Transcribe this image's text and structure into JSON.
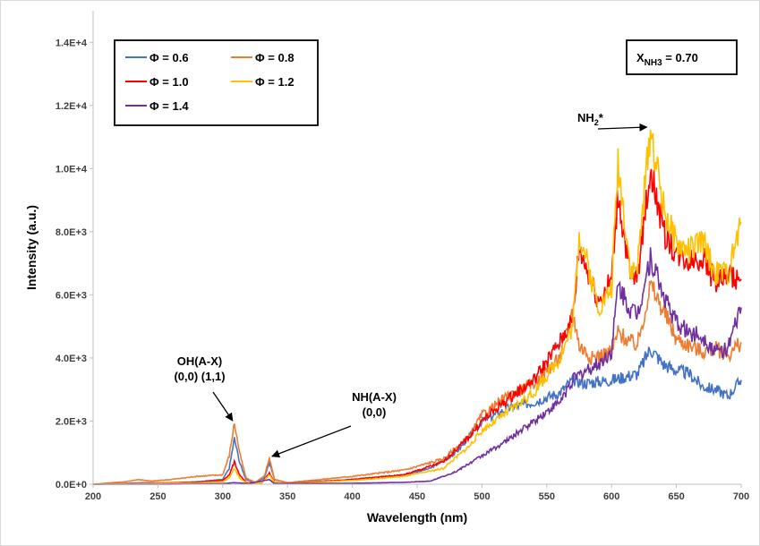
{
  "chart_data": {
    "type": "line",
    "title": "",
    "xlabel": "Wavelength (nm)",
    "ylabel": "Intensity (a.u.)",
    "xlim": [
      200,
      700
    ],
    "ylim": [
      0,
      15000
    ],
    "x_ticks": [
      200,
      250,
      300,
      350,
      400,
      450,
      500,
      550,
      600,
      650,
      700
    ],
    "x_tick_labels": [
      "200",
      "250",
      "300",
      "350",
      "400",
      "450",
      "500",
      "550",
      "600",
      "650",
      "700"
    ],
    "y_ticks": [
      0,
      2000,
      4000,
      6000,
      8000,
      10000,
      12000,
      14000
    ],
    "y_tick_labels": [
      "0.0E+0",
      "2.0E+3",
      "4.0E+3",
      "6.0E+3",
      "8.0E+3",
      "1.0E+4",
      "1.2E+4",
      "1.4E+4"
    ],
    "grid": false,
    "legend_position": "top-left",
    "composition_box": {
      "prefix": "X",
      "subscript": "NH3",
      "suffix": " = 0.70"
    },
    "annotations": [
      {
        "lines": [
          "OH(A-X)",
          "(0,0) (1,1)"
        ],
        "target": [
          309,
          1900
        ]
      },
      {
        "lines": [
          "NH(A-X)",
          "(0,0)"
        ],
        "target": [
          336,
          800
        ]
      },
      {
        "lines": [
          "NH",
          "2",
          "*"
        ],
        "target": [
          630,
          11200
        ]
      }
    ],
    "series": [
      {
        "name": "Φ = 0.6",
        "color": "#4472c4",
        "points": [
          [
            200,
            0
          ],
          [
            225,
            30
          ],
          [
            240,
            50
          ],
          [
            260,
            40
          ],
          [
            280,
            80
          ],
          [
            300,
            150
          ],
          [
            305,
            500
          ],
          [
            309,
            1450
          ],
          [
            313,
            700
          ],
          [
            318,
            150
          ],
          [
            325,
            50
          ],
          [
            332,
            200
          ],
          [
            336,
            700
          ],
          [
            340,
            150
          ],
          [
            350,
            40
          ],
          [
            400,
            150
          ],
          [
            440,
            300
          ],
          [
            460,
            500
          ],
          [
            480,
            1000
          ],
          [
            500,
            2000
          ],
          [
            520,
            2400
          ],
          [
            540,
            2600
          ],
          [
            560,
            2900
          ],
          [
            570,
            3300
          ],
          [
            580,
            3200
          ],
          [
            600,
            3300
          ],
          [
            610,
            3400
          ],
          [
            620,
            3500
          ],
          [
            630,
            4300
          ],
          [
            640,
            3800
          ],
          [
            650,
            3600
          ],
          [
            660,
            3500
          ],
          [
            670,
            3100
          ],
          [
            680,
            3000
          ],
          [
            690,
            2800
          ],
          [
            700,
            3300
          ]
        ]
      },
      {
        "name": "Φ = 0.8",
        "color": "#ed7d31",
        "points": [
          [
            200,
            0
          ],
          [
            225,
            80
          ],
          [
            235,
            150
          ],
          [
            245,
            100
          ],
          [
            260,
            150
          ],
          [
            280,
            250
          ],
          [
            300,
            300
          ],
          [
            305,
            900
          ],
          [
            309,
            1950
          ],
          [
            313,
            1000
          ],
          [
            318,
            200
          ],
          [
            325,
            60
          ],
          [
            332,
            250
          ],
          [
            336,
            800
          ],
          [
            340,
            150
          ],
          [
            350,
            50
          ],
          [
            400,
            250
          ],
          [
            440,
            450
          ],
          [
            470,
            800
          ],
          [
            490,
            1500
          ],
          [
            500,
            2200
          ],
          [
            520,
            2800
          ],
          [
            540,
            3200
          ],
          [
            560,
            4000
          ],
          [
            570,
            5500
          ],
          [
            575,
            4400
          ],
          [
            585,
            4000
          ],
          [
            600,
            4200
          ],
          [
            605,
            4800
          ],
          [
            615,
            4500
          ],
          [
            620,
            4400
          ],
          [
            630,
            6300
          ],
          [
            640,
            5500
          ],
          [
            650,
            4600
          ],
          [
            660,
            4400
          ],
          [
            670,
            4200
          ],
          [
            680,
            4300
          ],
          [
            690,
            4100
          ],
          [
            700,
            4500
          ]
        ]
      },
      {
        "name": "Φ = 1.0",
        "color": "#ff0000",
        "points": [
          [
            200,
            0
          ],
          [
            240,
            30
          ],
          [
            280,
            60
          ],
          [
            300,
            120
          ],
          [
            305,
            300
          ],
          [
            309,
            700
          ],
          [
            313,
            300
          ],
          [
            318,
            60
          ],
          [
            330,
            30
          ],
          [
            336,
            350
          ],
          [
            340,
            60
          ],
          [
            350,
            20
          ],
          [
            400,
            150
          ],
          [
            440,
            300
          ],
          [
            470,
            700
          ],
          [
            490,
            1500
          ],
          [
            500,
            2000
          ],
          [
            520,
            2700
          ],
          [
            540,
            3300
          ],
          [
            560,
            4500
          ],
          [
            570,
            5200
          ],
          [
            575,
            7500
          ],
          [
            590,
            5800
          ],
          [
            600,
            6500
          ],
          [
            605,
            9200
          ],
          [
            615,
            6400
          ],
          [
            620,
            6600
          ],
          [
            630,
            10000
          ],
          [
            640,
            8000
          ],
          [
            650,
            7300
          ],
          [
            660,
            7100
          ],
          [
            670,
            7200
          ],
          [
            680,
            6400
          ],
          [
            690,
            6600
          ],
          [
            700,
            6500
          ]
        ]
      },
      {
        "name": "Φ = 1.2",
        "color": "#ffc000",
        "points": [
          [
            200,
            0
          ],
          [
            240,
            20
          ],
          [
            280,
            40
          ],
          [
            300,
            80
          ],
          [
            305,
            200
          ],
          [
            309,
            500
          ],
          [
            313,
            200
          ],
          [
            318,
            50
          ],
          [
            330,
            30
          ],
          [
            336,
            300
          ],
          [
            340,
            50
          ],
          [
            350,
            20
          ],
          [
            400,
            120
          ],
          [
            440,
            250
          ],
          [
            470,
            500
          ],
          [
            490,
            1200
          ],
          [
            500,
            1700
          ],
          [
            520,
            2300
          ],
          [
            540,
            2900
          ],
          [
            560,
            4000
          ],
          [
            570,
            5000
          ],
          [
            575,
            8000
          ],
          [
            590,
            5600
          ],
          [
            600,
            6200
          ],
          [
            605,
            10200
          ],
          [
            615,
            6700
          ],
          [
            620,
            6900
          ],
          [
            630,
            11300
          ],
          [
            640,
            8800
          ],
          [
            650,
            7600
          ],
          [
            660,
            7400
          ],
          [
            670,
            7700
          ],
          [
            680,
            6700
          ],
          [
            690,
            6700
          ],
          [
            700,
            8300
          ]
        ]
      },
      {
        "name": "Φ = 1.4",
        "color": "#7030a0",
        "points": [
          [
            200,
            0
          ],
          [
            250,
            0
          ],
          [
            300,
            20
          ],
          [
            309,
            50
          ],
          [
            320,
            20
          ],
          [
            336,
            150
          ],
          [
            340,
            20
          ],
          [
            400,
            30
          ],
          [
            440,
            60
          ],
          [
            460,
            100
          ],
          [
            480,
            400
          ],
          [
            500,
            900
          ],
          [
            520,
            1400
          ],
          [
            540,
            2000
          ],
          [
            560,
            2600
          ],
          [
            570,
            3300
          ],
          [
            580,
            3600
          ],
          [
            590,
            3800
          ],
          [
            600,
            4200
          ],
          [
            605,
            6300
          ],
          [
            615,
            5500
          ],
          [
            620,
            5400
          ],
          [
            630,
            7200
          ],
          [
            640,
            6000
          ],
          [
            650,
            5100
          ],
          [
            660,
            4800
          ],
          [
            670,
            4700
          ],
          [
            680,
            4200
          ],
          [
            690,
            4300
          ],
          [
            700,
            5600
          ]
        ]
      }
    ]
  }
}
